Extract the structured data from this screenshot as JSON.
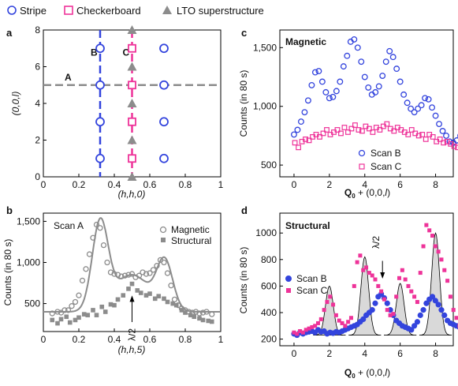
{
  "legend_top": {
    "items": [
      {
        "label": "Stripe",
        "marker": "circle-open",
        "color": "#3344dd"
      },
      {
        "label": "Checkerboard",
        "marker": "square-open",
        "color": "#ee3399"
      },
      {
        "label": "LTO superstructure",
        "marker": "triangle-filled",
        "color": "#8c8c8c"
      }
    ]
  },
  "panel_labels": {
    "a": "a",
    "b": "b",
    "c": "c",
    "d": "d"
  },
  "colors": {
    "blue": "#3344dd",
    "pink": "#ee3399",
    "gray": "#8c8c8c",
    "fill_gray": "#d9d9d9"
  },
  "chart_data": [
    {
      "panel": "a",
      "type": "scatter",
      "xlabel": "(h,h,0)",
      "ylabel": "(0,0,l)",
      "xlim": [
        0,
        1
      ],
      "ylim": [
        0,
        8
      ],
      "xticks": [
        "0",
        "0.2",
        "0.4",
        "0.6",
        "0.8",
        "1"
      ],
      "yticks": [
        "0",
        "2",
        "4",
        "6",
        "8"
      ],
      "lines": [
        {
          "label": "A",
          "orientation": "horizontal",
          "value": 5,
          "color": "#8c8c8c"
        },
        {
          "label": "B",
          "orientation": "vertical",
          "value": 0.32,
          "color": "#3344dd"
        },
        {
          "label": "C",
          "orientation": "vertical",
          "value": 0.5,
          "color": "#ee3399"
        }
      ],
      "series": [
        {
          "name": "Stripe",
          "points": [
            [
              0.32,
              1
            ],
            [
              0.32,
              3
            ],
            [
              0.32,
              5
            ],
            [
              0.32,
              7
            ],
            [
              0.68,
              1
            ],
            [
              0.68,
              3
            ],
            [
              0.68,
              5
            ],
            [
              0.68,
              7
            ]
          ]
        },
        {
          "name": "Checkerboard",
          "points": [
            [
              0.5,
              1
            ],
            [
              0.5,
              3
            ],
            [
              0.5,
              5
            ],
            [
              0.5,
              7
            ]
          ]
        },
        {
          "name": "LTO superstructure",
          "points": [
            [
              0.5,
              0
            ],
            [
              0.5,
              2
            ],
            [
              0.5,
              4
            ],
            [
              0.5,
              6
            ],
            [
              0.5,
              8
            ]
          ]
        }
      ]
    },
    {
      "panel": "b",
      "type": "scatter",
      "title": "Scan A",
      "xlabel": "(h,h,5)",
      "ylabel": "Counts (in 80 s)",
      "xlim": [
        0,
        1
      ],
      "ylim": [
        160,
        1600
      ],
      "xticks": [
        "0",
        "0.2",
        "0.4",
        "0.6",
        "0.8",
        "1"
      ],
      "yticks": [
        "500",
        "1,000",
        "1,500"
      ],
      "annotation": "λ/2",
      "annotation_x": 0.5,
      "series": [
        {
          "name": "Magnetic",
          "x": [
            0.05,
            0.08,
            0.1,
            0.12,
            0.14,
            0.16,
            0.18,
            0.2,
            0.22,
            0.24,
            0.26,
            0.28,
            0.3,
            0.32,
            0.34,
            0.36,
            0.38,
            0.4,
            0.42,
            0.44,
            0.46,
            0.48,
            0.5,
            0.52,
            0.54,
            0.56,
            0.58,
            0.6,
            0.62,
            0.64,
            0.66,
            0.68,
            0.7,
            0.72,
            0.74,
            0.76,
            0.78,
            0.8,
            0.82,
            0.84,
            0.86,
            0.88,
            0.9,
            0.92,
            0.95
          ],
          "values": [
            380,
            400,
            390,
            420,
            420,
            470,
            520,
            600,
            780,
            920,
            1100,
            1300,
            1460,
            1420,
            1210,
            1000,
            880,
            860,
            850,
            830,
            840,
            850,
            860,
            820,
            840,
            880,
            860,
            870,
            910,
            960,
            1030,
            1000,
            870,
            720,
            550,
            480,
            440,
            420,
            400,
            390,
            400,
            380,
            390,
            400,
            370
          ]
        },
        {
          "name": "Structural",
          "x": [
            0.05,
            0.08,
            0.1,
            0.13,
            0.15,
            0.18,
            0.2,
            0.23,
            0.25,
            0.28,
            0.3,
            0.33,
            0.35,
            0.38,
            0.4,
            0.42,
            0.45,
            0.48,
            0.5,
            0.53,
            0.55,
            0.58,
            0.6,
            0.63,
            0.65,
            0.68,
            0.7,
            0.73,
            0.75,
            0.78,
            0.8,
            0.83,
            0.85,
            0.88,
            0.9,
            0.93,
            0.95
          ],
          "values": [
            300,
            260,
            310,
            340,
            270,
            300,
            330,
            370,
            360,
            420,
            360,
            460,
            400,
            490,
            480,
            550,
            600,
            680,
            740,
            660,
            630,
            600,
            620,
            560,
            590,
            560,
            520,
            500,
            480,
            420,
            390,
            360,
            340,
            320,
            300,
            290,
            280
          ]
        },
        {
          "name": "fit",
          "x": [],
          "values": []
        }
      ]
    },
    {
      "panel": "c",
      "type": "scatter",
      "title": "Magnetic",
      "xlabel": "Q0 + (0,0,l)",
      "ylabel": "Counts (in 80 s)",
      "xlim": [
        -0.8,
        9
      ],
      "ylim": [
        400,
        1650
      ],
      "xticks": [
        "0",
        "2",
        "4",
        "6",
        "8"
      ],
      "yticks": [
        "500",
        "1,000",
        "1,500"
      ],
      "legend": [
        "Scan B",
        "Scan C"
      ],
      "series": [
        {
          "name": "Scan B",
          "x_start": 0,
          "x_step": 0.2,
          "values": [
            760,
            800,
            870,
            950,
            1050,
            1180,
            1290,
            1300,
            1210,
            1120,
            1070,
            1080,
            1130,
            1210,
            1340,
            1430,
            1550,
            1570,
            1500,
            1380,
            1250,
            1160,
            1100,
            1120,
            1170,
            1260,
            1380,
            1470,
            1420,
            1320,
            1210,
            1100,
            1030,
            980,
            950,
            980,
            1010,
            1070,
            1060,
            990,
            920,
            850,
            790,
            750,
            700,
            690,
            710,
            750
          ]
        },
        {
          "name": "Scan C",
          "x_start": 0,
          "x_step": 0.2,
          "values": [
            690,
            650,
            700,
            720,
            710,
            740,
            760,
            740,
            770,
            800,
            760,
            780,
            800,
            770,
            820,
            780,
            810,
            840,
            800,
            790,
            830,
            810,
            780,
            820,
            800,
            830,
            850,
            810,
            790,
            820,
            800,
            780,
            760,
            800,
            770,
            750,
            760,
            720,
            760,
            740,
            700,
            720,
            690,
            700,
            680,
            660,
            650,
            670
          ]
        }
      ]
    },
    {
      "panel": "d",
      "type": "scatter",
      "title": "Structural",
      "xlabel": "Q0 + (0,0,l)",
      "ylabel": "Counts (in 80 s)",
      "xlim": [
        -0.8,
        9
      ],
      "ylim": [
        150,
        1150
      ],
      "xticks": [
        "0",
        "2",
        "4",
        "6",
        "8"
      ],
      "yticks": [
        "200",
        "400",
        "600",
        "800",
        "1000"
      ],
      "annotation": "λ/2",
      "annotation_x": 5,
      "legend": [
        "Scan B",
        "Scan C"
      ],
      "peaks": [
        {
          "x": 2,
          "height": 600
        },
        {
          "x": 4,
          "height": 820
        },
        {
          "x": 6,
          "height": 620
        },
        {
          "x": 8,
          "height": 1000
        }
      ],
      "series": [
        {
          "name": "Scan B",
          "x_start": 0,
          "x_step": 0.17,
          "values": [
            240,
            230,
            250,
            240,
            250,
            255,
            260,
            250,
            270,
            255,
            260,
            240,
            250,
            245,
            255,
            250,
            260,
            270,
            280,
            290,
            300,
            310,
            330,
            350,
            380,
            400,
            420,
            470,
            520,
            540,
            510,
            470,
            420,
            380,
            340,
            320,
            300,
            290,
            280,
            270,
            300,
            330,
            380,
            420,
            470,
            500,
            520,
            490,
            460,
            420,
            380,
            340,
            320,
            310,
            300,
            290
          ]
        },
        {
          "name": "Scan C",
          "x_start": 0,
          "x_step": 0.17,
          "values": [
            250,
            240,
            260,
            250,
            270,
            280,
            290,
            300,
            320,
            350,
            420,
            480,
            520,
            460,
            380,
            340,
            320,
            300,
            330,
            360,
            600,
            780,
            830,
            720,
            740,
            700,
            680,
            650,
            600,
            560,
            500,
            420,
            380,
            390,
            520,
            660,
            720,
            650,
            600,
            560,
            520,
            480,
            700,
            900,
            1060,
            1020,
            980,
            900,
            860,
            800,
            720,
            640,
            520,
            420,
            360,
            300
          ]
        }
      ]
    }
  ]
}
